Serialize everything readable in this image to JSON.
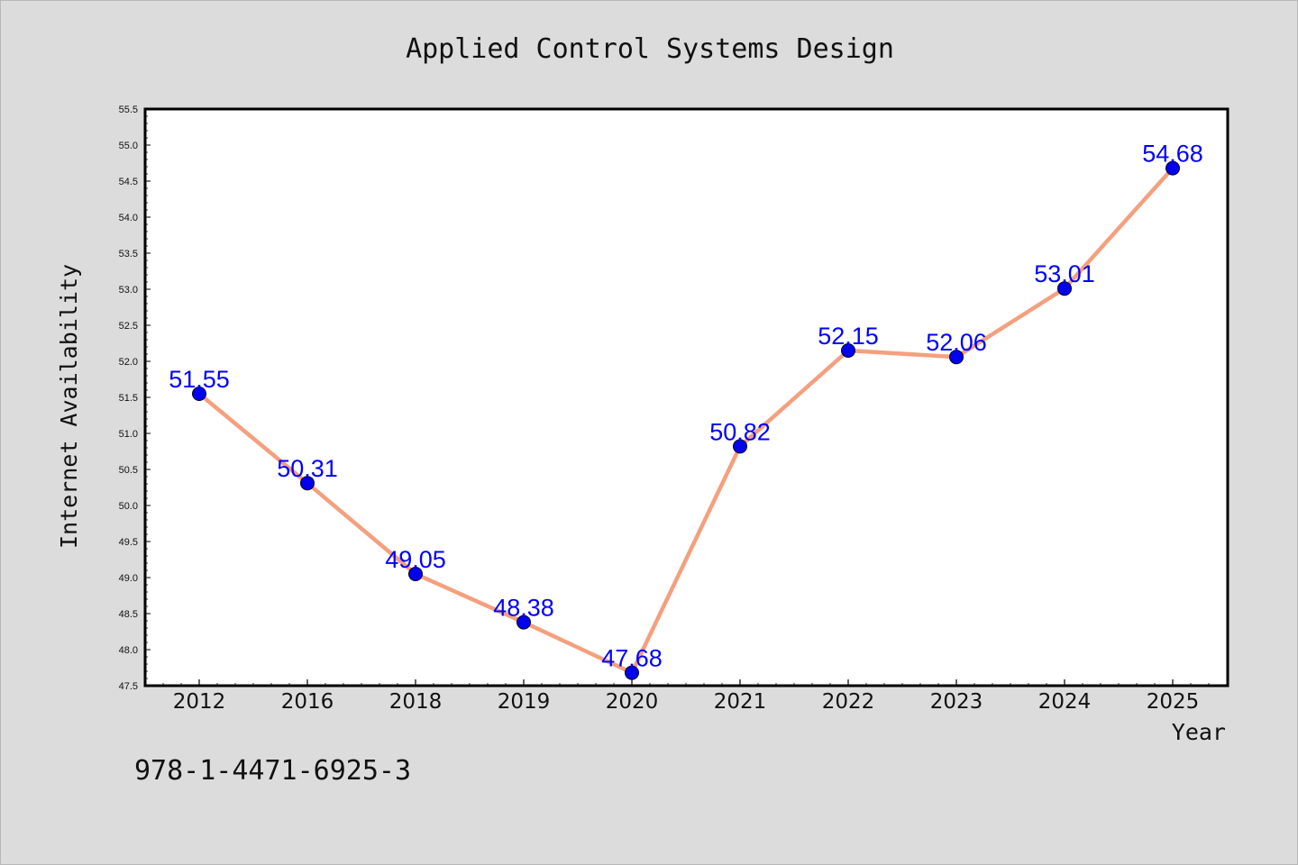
{
  "chart_data": {
    "type": "line",
    "title": "Applied Control Systems Design",
    "xlabel": "Year",
    "ylabel": "Internet Availability",
    "categories": [
      "2012",
      "2016",
      "2018",
      "2019",
      "2020",
      "2021",
      "2022",
      "2023",
      "2024",
      "2025"
    ],
    "values": [
      51.55,
      50.31,
      49.05,
      48.38,
      47.68,
      50.82,
      52.15,
      52.06,
      53.01,
      54.68
    ],
    "data_labels": [
      "51.55",
      "50.31",
      "49.05",
      "48.38",
      "47.68",
      "50.82",
      "52.15",
      "52.06",
      "53.01",
      "54.68"
    ],
    "ylim": [
      47.5,
      55.5
    ],
    "yticks": [
      "47.5",
      "48.0",
      "48.5",
      "49.0",
      "49.5",
      "50.0",
      "50.5",
      "51.0",
      "51.5",
      "52.0",
      "52.5",
      "53.0",
      "53.5",
      "54.0",
      "54.5",
      "55.0",
      "55.5"
    ],
    "grid": false,
    "legend": "none",
    "colors": {
      "line": "#f4a07e",
      "marker": "#0000ee",
      "label": "#0000ff",
      "background": "#dcdcdc",
      "plot_area": "#ffffff"
    }
  },
  "footer": {
    "text": "978-1-4471-6925-3"
  }
}
